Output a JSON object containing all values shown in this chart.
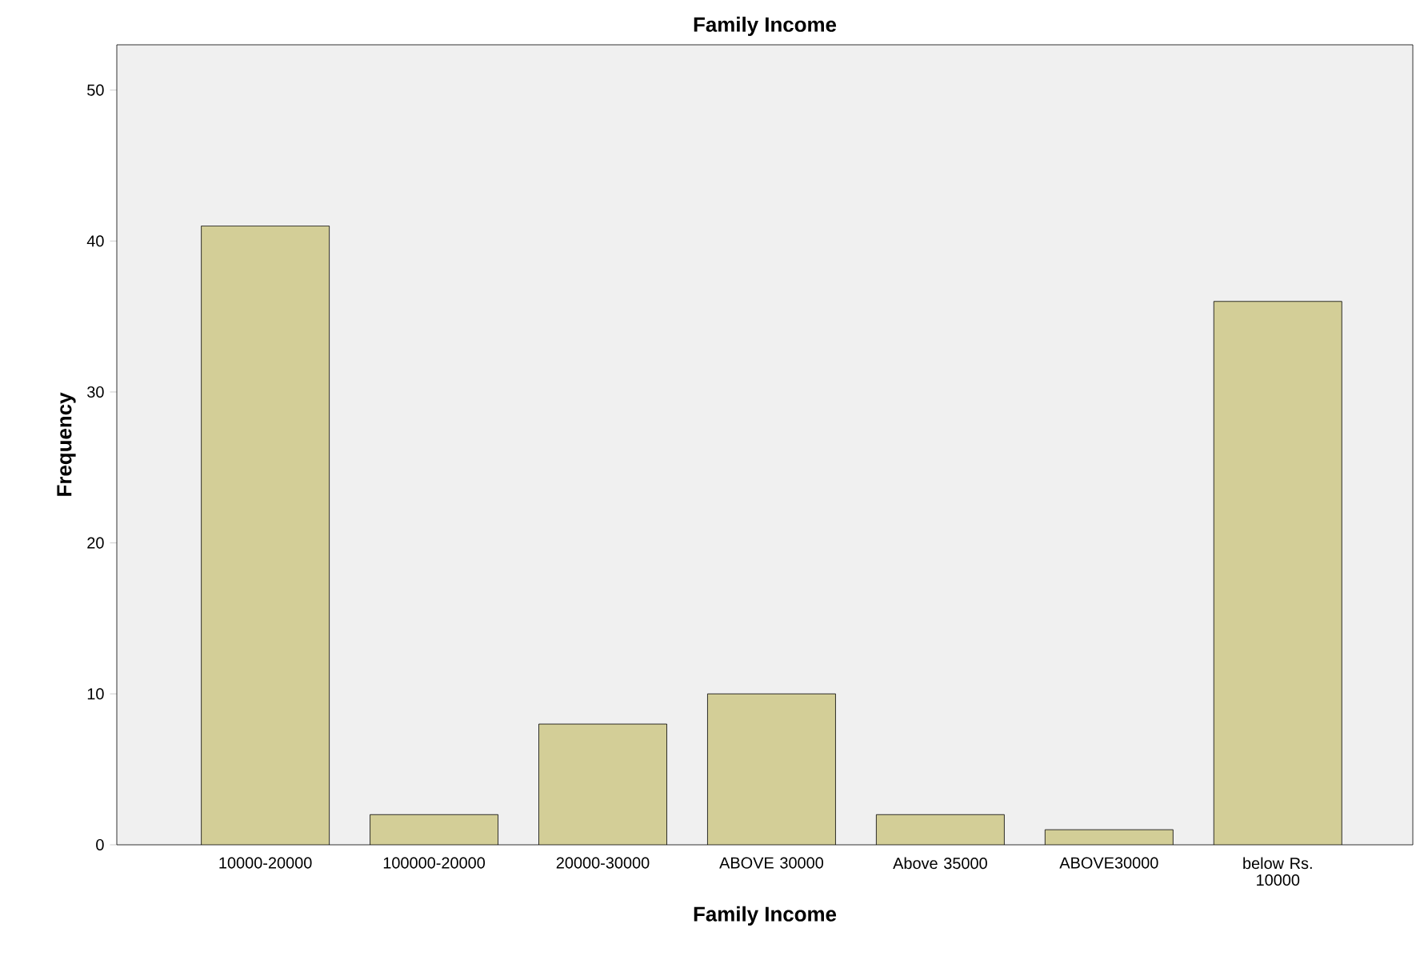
{
  "chart_data": {
    "type": "bar",
    "title": "Family Income",
    "xlabel": "Family Income",
    "ylabel": "Frequency",
    "categories": [
      "10000-20000",
      "100000-20000",
      "20000-30000",
      "ABOVE 30000",
      "Above 35000",
      "ABOVE30000",
      "below Rs. 10000"
    ],
    "values": [
      41,
      2,
      8,
      10,
      2,
      1,
      36
    ],
    "color": "#d3ce97",
    "ylim": [
      0,
      53
    ],
    "yticks": [
      0,
      10,
      20,
      30,
      40,
      50
    ],
    "grid": false
  }
}
